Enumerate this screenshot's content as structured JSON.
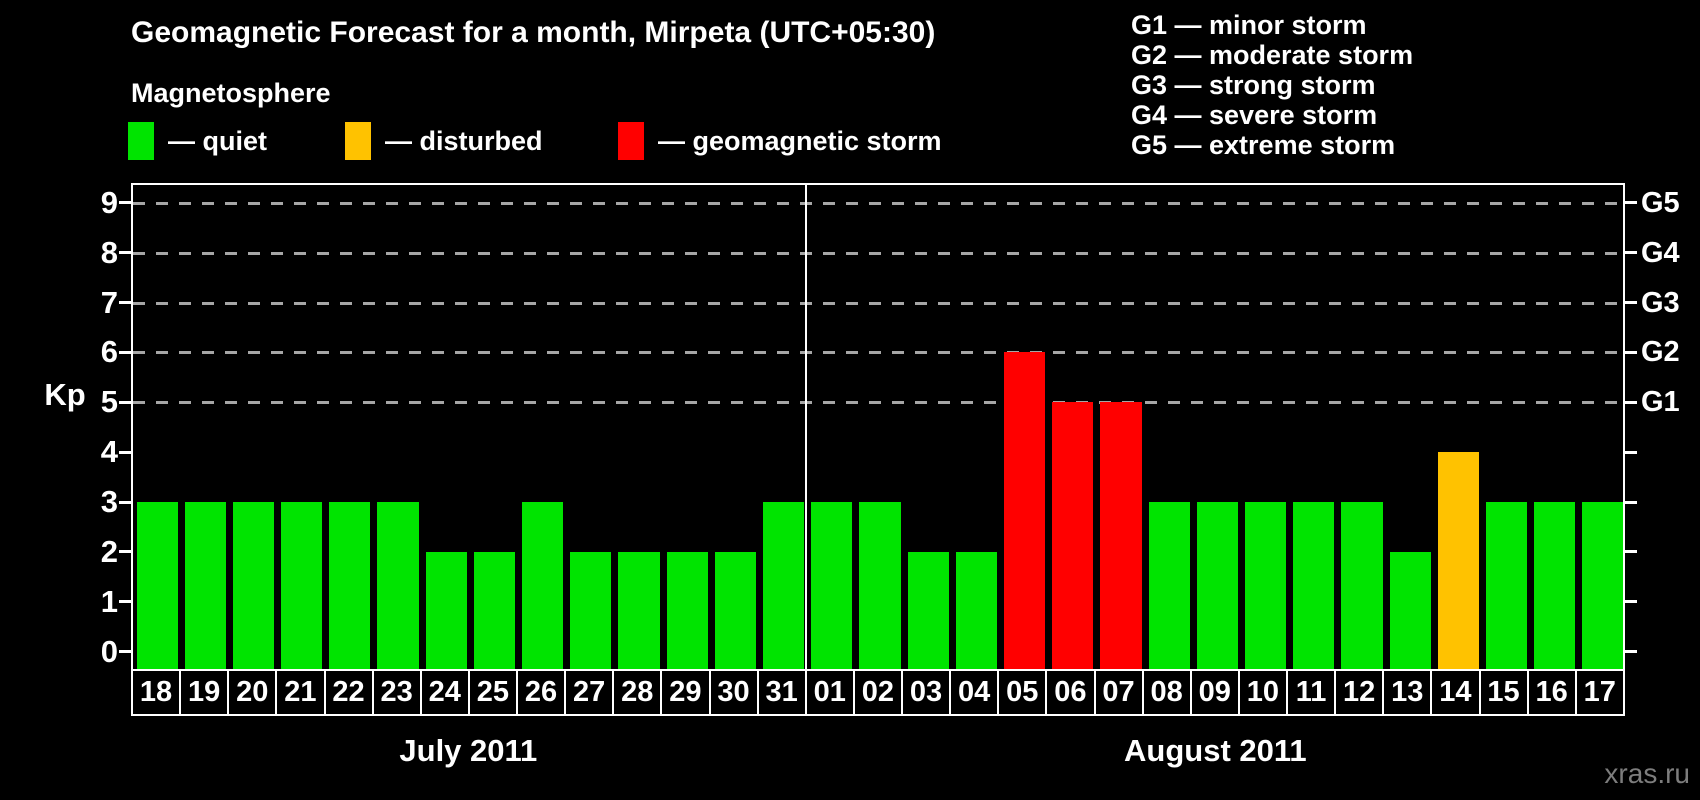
{
  "title": "Geomagnetic Forecast for a month, Mirpeta (UTC+05:30)",
  "legend": {
    "heading": "Magnetosphere",
    "items": [
      {
        "key": "quiet",
        "label": "— quiet",
        "color": "#00e400"
      },
      {
        "key": "disturbed",
        "label": "— disturbed",
        "color": "#ffc200"
      },
      {
        "key": "storm",
        "label": "— geomagnetic storm",
        "color": "#ff0000"
      }
    ]
  },
  "g_legend": [
    "G1 — minor storm",
    "G2 — moderate storm",
    "G3 — strong storm",
    "G4 — severe storm",
    "G5 — extreme storm"
  ],
  "watermark": "xras.ru",
  "chart_data": {
    "type": "bar",
    "title": "Geomagnetic Forecast for a month, Mirpeta (UTC+05:30)",
    "ylabel": "Kp",
    "ylim": [
      0,
      9
    ],
    "yticks": [
      0,
      1,
      2,
      3,
      4,
      5,
      6,
      7,
      8,
      9
    ],
    "right_axis_labels": {
      "5": "G1",
      "6": "G2",
      "7": "G3",
      "8": "G4",
      "9": "G5"
    },
    "gridlines_at": [
      5,
      6,
      7,
      8,
      9
    ],
    "grid": true,
    "legend_position": "top",
    "months": [
      {
        "label": "July 2011",
        "days": [
          {
            "day": "18",
            "kp": 3,
            "status": "quiet"
          },
          {
            "day": "19",
            "kp": 3,
            "status": "quiet"
          },
          {
            "day": "20",
            "kp": 3,
            "status": "quiet"
          },
          {
            "day": "21",
            "kp": 3,
            "status": "quiet"
          },
          {
            "day": "22",
            "kp": 3,
            "status": "quiet"
          },
          {
            "day": "23",
            "kp": 3,
            "status": "quiet"
          },
          {
            "day": "24",
            "kp": 2,
            "status": "quiet"
          },
          {
            "day": "25",
            "kp": 2,
            "status": "quiet"
          },
          {
            "day": "26",
            "kp": 3,
            "status": "quiet"
          },
          {
            "day": "27",
            "kp": 2,
            "status": "quiet"
          },
          {
            "day": "28",
            "kp": 2,
            "status": "quiet"
          },
          {
            "day": "29",
            "kp": 2,
            "status": "quiet"
          },
          {
            "day": "30",
            "kp": 2,
            "status": "quiet"
          },
          {
            "day": "31",
            "kp": 3,
            "status": "quiet"
          }
        ]
      },
      {
        "label": "August 2011",
        "days": [
          {
            "day": "01",
            "kp": 3,
            "status": "quiet"
          },
          {
            "day": "02",
            "kp": 3,
            "status": "quiet"
          },
          {
            "day": "03",
            "kp": 2,
            "status": "quiet"
          },
          {
            "day": "04",
            "kp": 2,
            "status": "quiet"
          },
          {
            "day": "05",
            "kp": 6,
            "status": "storm"
          },
          {
            "day": "06",
            "kp": 5,
            "status": "storm"
          },
          {
            "day": "07",
            "kp": 5,
            "status": "storm"
          },
          {
            "day": "08",
            "kp": 3,
            "status": "quiet"
          },
          {
            "day": "09",
            "kp": 3,
            "status": "quiet"
          },
          {
            "day": "10",
            "kp": 3,
            "status": "quiet"
          },
          {
            "day": "11",
            "kp": 3,
            "status": "quiet"
          },
          {
            "day": "12",
            "kp": 3,
            "status": "quiet"
          },
          {
            "day": "13",
            "kp": 2,
            "status": "quiet"
          },
          {
            "day": "14",
            "kp": 4,
            "status": "disturbed"
          },
          {
            "day": "15",
            "kp": 3,
            "status": "quiet"
          },
          {
            "day": "16",
            "kp": 3,
            "status": "quiet"
          },
          {
            "day": "17",
            "kp": 3,
            "status": "quiet"
          }
        ]
      }
    ]
  }
}
